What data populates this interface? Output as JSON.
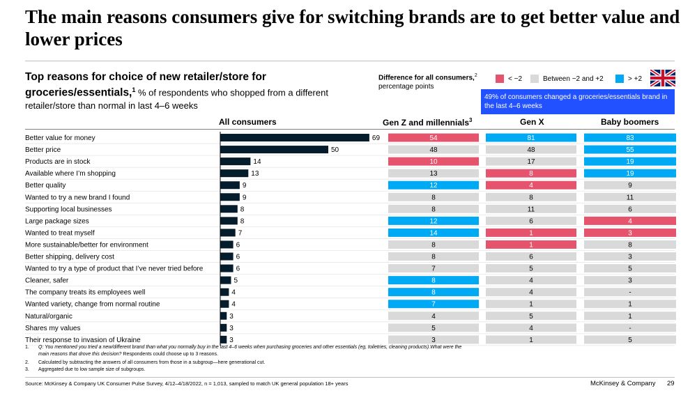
{
  "header": {
    "title": "The main reasons consumers give for switching brands are to get better value and lower prices"
  },
  "subtitle": {
    "bold_text": "Top reasons for choice of new retailer/store for groceries/essentials,",
    "bold_sup": "1",
    "normal_text": " % of respondents who shopped from a different retailer/store than normal in last 4–6 weeks"
  },
  "difference_label": {
    "bold_text": "Difference for all consumers,",
    "sup": "2",
    "normal_text": "percentage points"
  },
  "legend": [
    {
      "label": "< −2",
      "color": "#e5546c"
    },
    {
      "label": "Between −2 and +2",
      "color": "#d9d9d9"
    },
    {
      "label": "> +2",
      "color": "#00a9f4"
    }
  ],
  "note": "49% of consumers changed a groceries/essentials brand in the last 4–6 weeks",
  "columns": {
    "all": "All consumers",
    "genz": "Gen Z and millennials",
    "genz_sup": "3",
    "genx": "Gen X",
    "boomers": "Baby boomers"
  },
  "chart_data": {
    "type": "bar",
    "orientation": "horizontal",
    "categories": [
      "Better value for money",
      "Better price",
      "Products are in stock",
      "Available where I’m shopping",
      "Better quality",
      "Wanted to try a new brand I found",
      "Supporting local businesses",
      "Large package sizes",
      "Wanted to treat myself",
      "More sustainable/better for environment",
      "Better shipping, delivery cost",
      "Wanted to try a type of product that I’ve never tried before",
      "Cleaner, safer",
      "The company treats its employees well",
      "Wanted variety, change from normal routine",
      "Natural/organic",
      "Shares my values",
      "Their response to invasion of Ukraine"
    ],
    "series": [
      {
        "name": "All consumers",
        "values": [
          69,
          50,
          14,
          13,
          9,
          9,
          8,
          8,
          7,
          6,
          6,
          6,
          5,
          4,
          4,
          3,
          3,
          3
        ],
        "color": "#051c2c"
      }
    ],
    "subgroups": [
      {
        "name": "Gen Z and millennials",
        "values": [
          "54",
          "48",
          "10",
          "13",
          "12",
          "8",
          "8",
          "12",
          "14",
          "8",
          "8",
          "7",
          "8",
          "8",
          "7",
          "4",
          "5",
          "3"
        ],
        "tones": [
          "neg",
          "neu",
          "neg",
          "neu",
          "pos",
          "neu",
          "neu",
          "pos",
          "pos",
          "neu",
          "neu",
          "neu",
          "pos",
          "pos",
          "pos",
          "neu",
          "neu",
          "neu"
        ]
      },
      {
        "name": "Gen X",
        "values": [
          "81",
          "48",
          "17",
          "8",
          "4",
          "8",
          "11",
          "6",
          "1",
          "1",
          "6",
          "5",
          "4",
          "4",
          "1",
          "5",
          "4",
          "1"
        ],
        "tones": [
          "pos",
          "neu",
          "neu",
          "neg",
          "neg",
          "neu",
          "neu",
          "neu",
          "neg",
          "neg",
          "neu",
          "neu",
          "neu",
          "neu",
          "neu",
          "neu",
          "neu",
          "neu"
        ]
      },
      {
        "name": "Baby boomers",
        "values": [
          "83",
          "55",
          "19",
          "19",
          "9",
          "11",
          "6",
          "4",
          "3",
          "8",
          "3",
          "5",
          "3",
          "-",
          "1",
          "1",
          "-",
          "5"
        ],
        "tones": [
          "pos",
          "pos",
          "pos",
          "pos",
          "neu",
          "neu",
          "neu",
          "neg",
          "neg",
          "neu",
          "neu",
          "neu",
          "neu",
          "neu",
          "neu",
          "neu",
          "neu",
          "neu"
        ]
      }
    ],
    "tone_colors": {
      "neg": "#e5546c",
      "neu": "#d9d9d9",
      "pos": "#00a9f4"
    },
    "xlim": [
      0,
      100
    ]
  },
  "footnotes": [
    {
      "num": "1.",
      "italic": "Q: You mentioned you tried a new/different brand than what you normally buy in the last 4–6 weeks when purchasing groceries and other essentials (eg, toiletries, cleaning products).What were the main reasons that drove this decision?",
      "normal": " Respondents could choose up to 3 reasons."
    },
    {
      "num": "2.",
      "italic": "",
      "normal": "Calculated by subtracting the answers of all consumers from those in a subgroup—here generational cut."
    },
    {
      "num": "3.",
      "italic": "",
      "normal": "Aggregated due to low sample size of subgroups."
    }
  ],
  "source": "Source: McKinsey & Company UK Consumer Pulse Survey, 4/12–4/18/2022, n = 1,013, sampled to match UK general population 18+ years",
  "brand": "McKinsey & Company",
  "page_number": "29"
}
